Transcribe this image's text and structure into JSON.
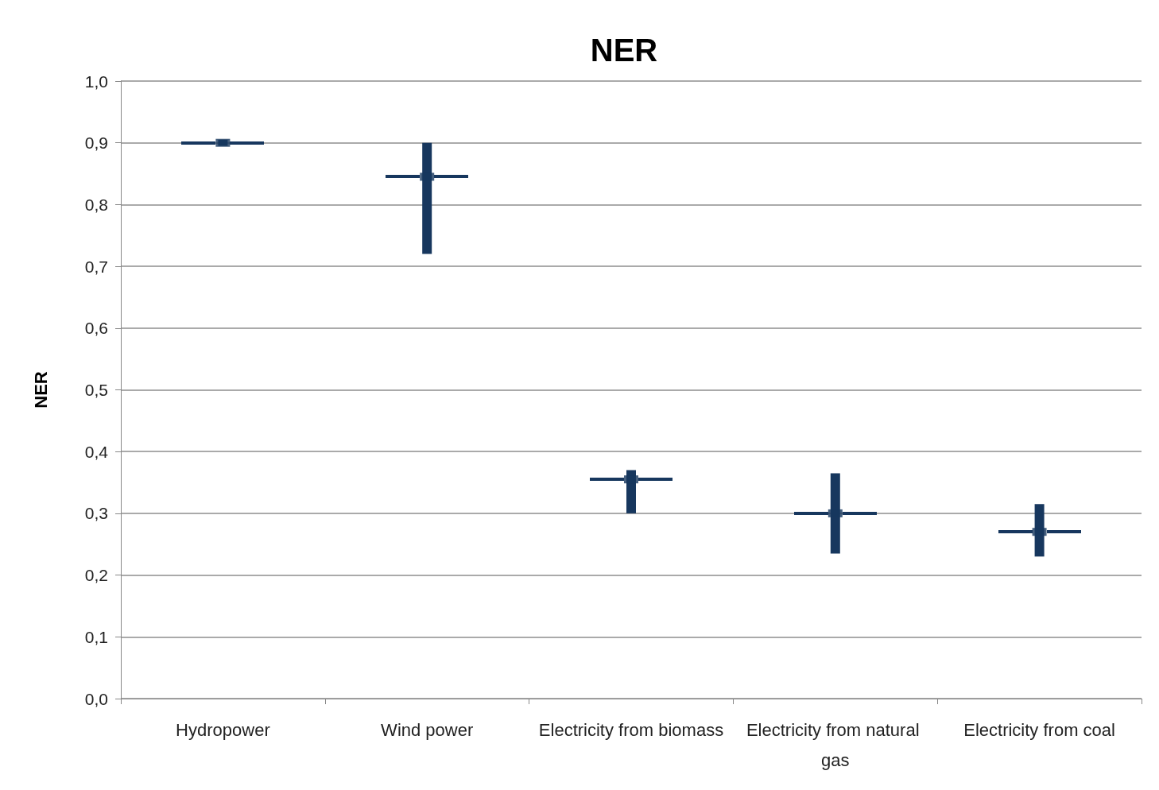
{
  "chart_data": {
    "type": "scatter",
    "title": "NER",
    "ylabel": "NER",
    "categories": [
      "Hydropower",
      "Wind power",
      "Electricity from biomass",
      "Electricity from natural gas",
      "Electricity from coal"
    ],
    "values": [
      0.9,
      0.845,
      0.355,
      0.3,
      0.27
    ],
    "errors": [
      [
        0.895,
        0.905
      ],
      [
        0.72,
        0.9
      ],
      [
        0.3,
        0.37
      ],
      [
        0.235,
        0.365
      ],
      [
        0.23,
        0.315
      ]
    ],
    "color": "#17375e",
    "ylim": [
      0,
      1
    ],
    "yticks": [
      {
        "value": 0,
        "label": "0,0"
      },
      {
        "value": 0.1,
        "label": "0,1"
      },
      {
        "value": 0.2,
        "label": "0,2"
      },
      {
        "value": 0.3,
        "label": "0,3"
      },
      {
        "value": 0.4,
        "label": "0,4"
      },
      {
        "value": 0.5,
        "label": "0,5"
      },
      {
        "value": 0.6,
        "label": "0,6"
      },
      {
        "value": 0.7,
        "label": "0,7"
      },
      {
        "value": 0.8,
        "label": "0,8"
      },
      {
        "value": 0.9,
        "label": "0,9"
      },
      {
        "value": 1,
        "label": "1,0"
      }
    ],
    "grid": "y"
  }
}
